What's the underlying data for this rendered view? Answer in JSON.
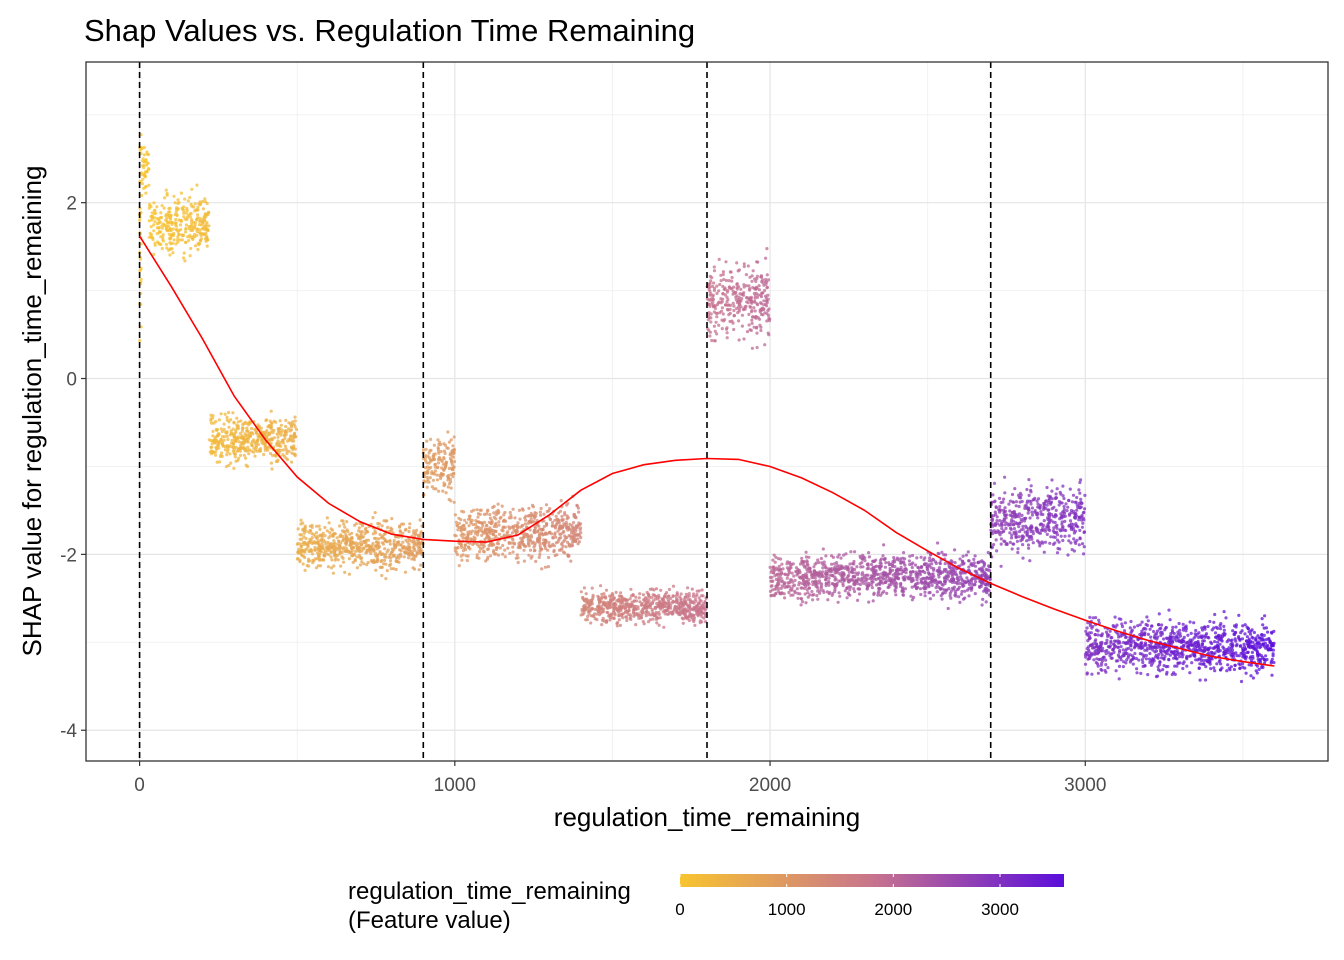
{
  "chart_data": {
    "type": "scatter",
    "title": "Shap Values vs. Regulation Time Remaining",
    "xlabel": "regulation_time_remaining",
    "ylabel": "SHAP value for regulation_time_remaining",
    "xlim": [
      -170,
      3770
    ],
    "ylim": [
      -4.35,
      3.6
    ],
    "x_ticks": [
      0,
      1000,
      2000,
      3000
    ],
    "y_ticks": [
      -4,
      -2,
      0,
      2
    ],
    "grid": true,
    "vertical_reference_lines": [
      0,
      900,
      1800,
      2700
    ],
    "point_color_scale": {
      "low": "#F8C42F",
      "mid": "#C8748D",
      "high": "#5B0EDB",
      "domain": [
        0,
        3600
      ]
    },
    "smooth_line_color": "#FF0000",
    "smooth_curve": {
      "x": [
        0,
        100,
        200,
        300,
        400,
        500,
        600,
        700,
        800,
        900,
        1000,
        1100,
        1200,
        1300,
        1400,
        1500,
        1600,
        1700,
        1800,
        1900,
        2000,
        2100,
        2200,
        2300,
        2400,
        2500,
        2600,
        2700,
        2800,
        2900,
        3000,
        3100,
        3200,
        3300,
        3400,
        3500,
        3600
      ],
      "y": [
        1.62,
        1.05,
        0.45,
        -0.2,
        -0.7,
        -1.12,
        -1.42,
        -1.63,
        -1.77,
        -1.83,
        -1.85,
        -1.86,
        -1.78,
        -1.55,
        -1.27,
        -1.08,
        -0.98,
        -0.93,
        -0.91,
        -0.92,
        -1.0,
        -1.13,
        -1.3,
        -1.5,
        -1.75,
        -1.96,
        -2.16,
        -2.33,
        -2.48,
        -2.62,
        -2.75,
        -2.87,
        -2.98,
        -3.07,
        -3.16,
        -3.22,
        -3.27
      ]
    },
    "point_clusters": [
      {
        "x": [
          0,
          5
        ],
        "y_mean": 1.6,
        "y_spread": 1.6
      },
      {
        "x": [
          5,
          30
        ],
        "y_mean": 2.4,
        "y_spread": 0.5
      },
      {
        "x": [
          30,
          220
        ],
        "y_mean": 1.75,
        "y_spread": 0.45
      },
      {
        "x": [
          220,
          500
        ],
        "y_mean": -0.7,
        "y_spread": 0.35
      },
      {
        "x": [
          500,
          900
        ],
        "y_mean": -1.9,
        "y_spread": 0.35
      },
      {
        "x": [
          900,
          1000
        ],
        "y_mean": -1.0,
        "y_spread": 0.45
      },
      {
        "x": [
          1000,
          1400
        ],
        "y_mean": -1.75,
        "y_spread": 0.4
      },
      {
        "x": [
          1400,
          1800
        ],
        "y_mean": -2.6,
        "y_spread": 0.25
      },
      {
        "x": [
          1800,
          2000
        ],
        "y_mean": 0.9,
        "y_spread": 0.6
      },
      {
        "x": [
          2000,
          2700
        ],
        "y_mean": -2.25,
        "y_spread": 0.35
      },
      {
        "x": [
          2700,
          3000
        ],
        "y_mean": -1.6,
        "y_spread": 0.5
      },
      {
        "x": [
          3000,
          3600
        ],
        "y_mean": -3.05,
        "y_spread": 0.4
      }
    ],
    "legend": {
      "title_line1": "regulation_time_remaining",
      "title_line2": "(Feature value)",
      "placement": "bottom",
      "ticks": [
        0,
        1000,
        2000,
        3000
      ],
      "domain": [
        0,
        3600
      ]
    }
  }
}
